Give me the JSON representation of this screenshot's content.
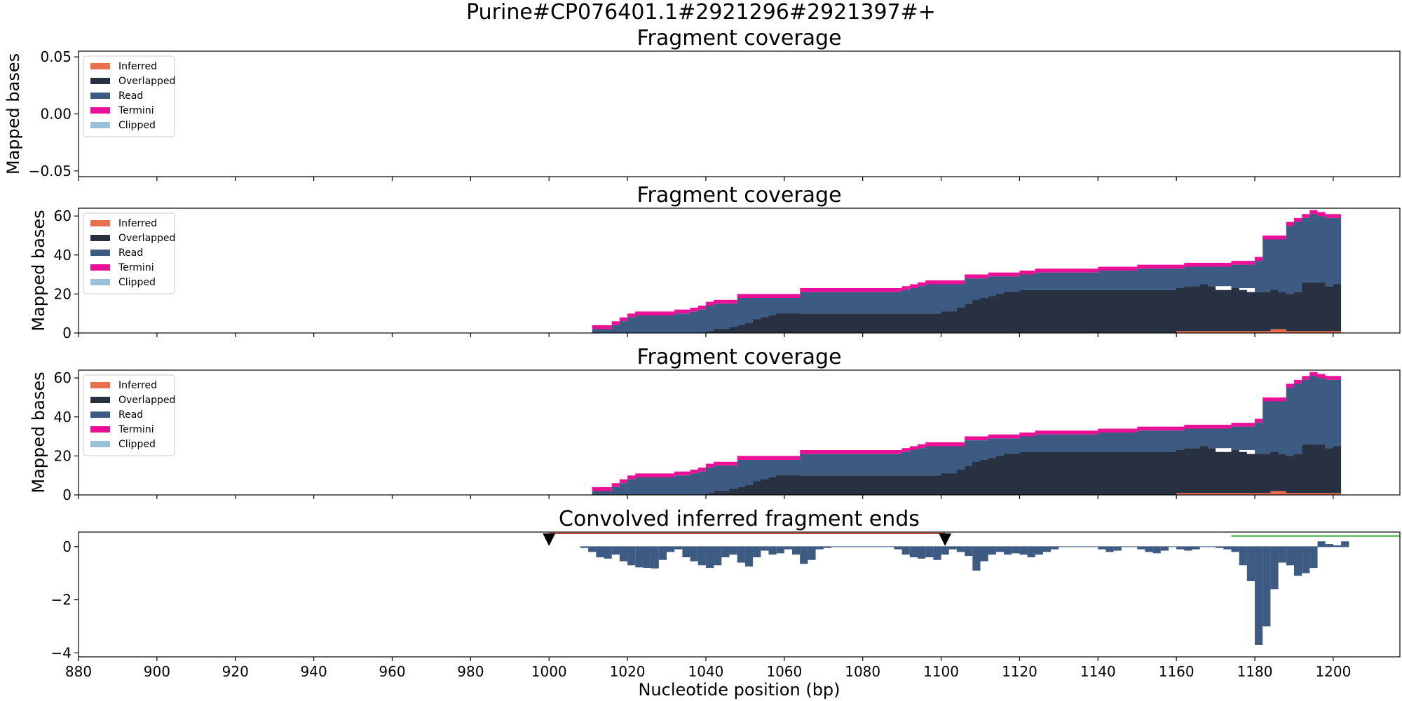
{
  "figure_title": "Purine#CP076401.1#2921296#2921397#+",
  "colors": {
    "Inferred": "#e8704f",
    "Overlapped": "#283142",
    "Read": "#3c5a82",
    "Termini": "#ec1098",
    "Clipped": "#98c1da",
    "conv": "#3c5a82",
    "conv_red_line": "#c0392b",
    "conv_green_line": "#2ca02c"
  },
  "chart_data": [
    {
      "type": "area",
      "title": "Fragment coverage",
      "ylabel": "Mapped bases",
      "xlim": [
        880,
        1217
      ],
      "ylim": [
        -0.055,
        0.055
      ],
      "yticks": [
        "0.05",
        "0.00",
        "−0.05"
      ],
      "ytick_values": [
        0.05,
        0.0,
        -0.05
      ],
      "legend": {
        "placement": "upper-left",
        "entries": [
          "Inferred",
          "Overlapped",
          "Read",
          "Termini",
          "Clipped"
        ]
      },
      "series": []
    },
    {
      "type": "area",
      "title": "Fragment coverage",
      "ylabel": "Mapped bases",
      "xlim": [
        880,
        1217
      ],
      "ylim": [
        0,
        64
      ],
      "yticks": [
        "0",
        "20",
        "40",
        "60"
      ],
      "ytick_values": [
        0,
        20,
        40,
        60
      ],
      "legend": {
        "placement": "upper-left",
        "entries": [
          "Inferred",
          "Overlapped",
          "Read",
          "Termini",
          "Clipped"
        ]
      },
      "coverage": {
        "total": [
          [
            1011,
            2
          ],
          [
            1012,
            2
          ],
          [
            1016,
            4
          ],
          [
            1018,
            6
          ],
          [
            1020,
            8
          ],
          [
            1022,
            9
          ],
          [
            1032,
            10
          ],
          [
            1036,
            11
          ],
          [
            1038,
            12
          ],
          [
            1040,
            14
          ],
          [
            1042,
            15
          ],
          [
            1048,
            18
          ],
          [
            1064,
            21
          ],
          [
            1090,
            22
          ],
          [
            1092,
            23
          ],
          [
            1094,
            24
          ],
          [
            1096,
            25
          ],
          [
            1106,
            28
          ],
          [
            1112,
            29
          ],
          [
            1120,
            30
          ],
          [
            1124,
            31
          ],
          [
            1140,
            32
          ],
          [
            1150,
            33
          ],
          [
            1162,
            34
          ],
          [
            1174,
            35
          ],
          [
            1180,
            37
          ],
          [
            1182,
            48
          ],
          [
            1188,
            55
          ],
          [
            1190,
            57
          ],
          [
            1192,
            59
          ],
          [
            1194,
            61
          ],
          [
            1196,
            60
          ],
          [
            1198,
            59
          ],
          [
            1200,
            59
          ],
          [
            1202,
            null
          ]
        ],
        "overlapped": [
          [
            1040,
            1
          ],
          [
            1042,
            2
          ],
          [
            1046,
            3
          ],
          [
            1048,
            4
          ],
          [
            1050,
            5
          ],
          [
            1052,
            7
          ],
          [
            1054,
            8
          ],
          [
            1056,
            9
          ],
          [
            1058,
            10
          ],
          [
            1100,
            11
          ],
          [
            1104,
            13
          ],
          [
            1106,
            15
          ],
          [
            1108,
            17
          ],
          [
            1110,
            18
          ],
          [
            1112,
            19
          ],
          [
            1114,
            20
          ],
          [
            1116,
            21
          ],
          [
            1120,
            22
          ],
          [
            1160,
            23
          ],
          [
            1162,
            24
          ],
          [
            1166,
            25
          ],
          [
            1168,
            24
          ],
          [
            1170,
            22
          ],
          [
            1174,
            23
          ],
          [
            1176,
            22
          ],
          [
            1178,
            21
          ],
          [
            1184,
            22
          ],
          [
            1186,
            21
          ],
          [
            1188,
            20
          ],
          [
            1190,
            21
          ],
          [
            1192,
            26
          ],
          [
            1198,
            24
          ],
          [
            1200,
            25
          ],
          [
            1202,
            null
          ]
        ],
        "inferred": [
          [
            1160,
            1
          ],
          [
            1184,
            2
          ],
          [
            1188,
            1
          ],
          [
            1202,
            null
          ]
        ],
        "termini_thickness": 2
      }
    },
    {
      "type": "area",
      "title": "Fragment coverage",
      "ylabel": "Mapped bases",
      "xlim": [
        880,
        1217
      ],
      "ylim": [
        0,
        64
      ],
      "yticks": [
        "0",
        "20",
        "40",
        "60"
      ],
      "ytick_values": [
        0,
        20,
        40,
        60
      ],
      "legend": {
        "placement": "upper-left",
        "entries": [
          "Inferred",
          "Overlapped",
          "Read",
          "Termini",
          "Clipped"
        ]
      },
      "coverage": {
        "total": [
          [
            1011,
            2
          ],
          [
            1012,
            2
          ],
          [
            1016,
            4
          ],
          [
            1018,
            6
          ],
          [
            1020,
            8
          ],
          [
            1022,
            9
          ],
          [
            1032,
            10
          ],
          [
            1036,
            11
          ],
          [
            1038,
            12
          ],
          [
            1040,
            14
          ],
          [
            1042,
            15
          ],
          [
            1048,
            18
          ],
          [
            1064,
            21
          ],
          [
            1090,
            22
          ],
          [
            1092,
            23
          ],
          [
            1094,
            24
          ],
          [
            1096,
            25
          ],
          [
            1106,
            28
          ],
          [
            1112,
            29
          ],
          [
            1120,
            30
          ],
          [
            1124,
            31
          ],
          [
            1140,
            32
          ],
          [
            1150,
            33
          ],
          [
            1162,
            34
          ],
          [
            1174,
            35
          ],
          [
            1180,
            37
          ],
          [
            1182,
            48
          ],
          [
            1188,
            55
          ],
          [
            1190,
            57
          ],
          [
            1192,
            59
          ],
          [
            1194,
            61
          ],
          [
            1196,
            60
          ],
          [
            1198,
            59
          ],
          [
            1200,
            59
          ],
          [
            1202,
            null
          ]
        ],
        "overlapped": [
          [
            1040,
            1
          ],
          [
            1042,
            2
          ],
          [
            1046,
            3
          ],
          [
            1048,
            4
          ],
          [
            1050,
            5
          ],
          [
            1052,
            7
          ],
          [
            1054,
            8
          ],
          [
            1056,
            9
          ],
          [
            1058,
            10
          ],
          [
            1100,
            11
          ],
          [
            1104,
            13
          ],
          [
            1106,
            15
          ],
          [
            1108,
            17
          ],
          [
            1110,
            18
          ],
          [
            1112,
            19
          ],
          [
            1114,
            20
          ],
          [
            1116,
            21
          ],
          [
            1120,
            22
          ],
          [
            1160,
            23
          ],
          [
            1162,
            24
          ],
          [
            1166,
            25
          ],
          [
            1168,
            24
          ],
          [
            1170,
            22
          ],
          [
            1174,
            23
          ],
          [
            1176,
            22
          ],
          [
            1178,
            21
          ],
          [
            1184,
            22
          ],
          [
            1186,
            21
          ],
          [
            1188,
            20
          ],
          [
            1190,
            21
          ],
          [
            1192,
            26
          ],
          [
            1198,
            24
          ],
          [
            1200,
            25
          ],
          [
            1202,
            null
          ]
        ],
        "inferred": [
          [
            1160,
            1
          ],
          [
            1184,
            2
          ],
          [
            1188,
            1
          ],
          [
            1202,
            null
          ]
        ],
        "termini_thickness": 2
      }
    },
    {
      "type": "bar",
      "title": "Convolved inferred fragment ends",
      "xlabel": "Nucleotide position (bp)",
      "xlim": [
        880,
        1217
      ],
      "ylim": [
        -4.15,
        0.55
      ],
      "yticks": [
        "0",
        "−2",
        "−4"
      ],
      "ytick_values": [
        0,
        -2,
        -4
      ],
      "xticks": [
        "880",
        "900",
        "920",
        "940",
        "960",
        "980",
        "1000",
        "1020",
        "1040",
        "1060",
        "1080",
        "1100",
        "1120",
        "1140",
        "1160",
        "1180",
        "1200"
      ],
      "xtick_values": [
        880,
        900,
        920,
        940,
        960,
        980,
        1000,
        1020,
        1040,
        1060,
        1080,
        1100,
        1120,
        1140,
        1160,
        1180,
        1200
      ],
      "markers": [
        1000,
        1101
      ],
      "red_line": [
        1000,
        1101
      ],
      "red_line_y": 0.5,
      "green_line": [
        1174,
        1217
      ],
      "green_line_y": 0.4,
      "bars": [
        [
          1008,
          -0.05
        ],
        [
          1010,
          -0.2
        ],
        [
          1012,
          -0.4
        ],
        [
          1014,
          -0.45
        ],
        [
          1016,
          -0.3
        ],
        [
          1018,
          -0.55
        ],
        [
          1020,
          -0.7
        ],
        [
          1022,
          -0.78
        ],
        [
          1024,
          -0.8
        ],
        [
          1026,
          -0.82
        ],
        [
          1028,
          -0.5
        ],
        [
          1030,
          -0.2
        ],
        [
          1032,
          -0.1
        ],
        [
          1034,
          -0.4
        ],
        [
          1036,
          -0.55
        ],
        [
          1038,
          -0.7
        ],
        [
          1040,
          -0.8
        ],
        [
          1042,
          -0.7
        ],
        [
          1044,
          -0.4
        ],
        [
          1046,
          -0.3
        ],
        [
          1048,
          -0.6
        ],
        [
          1050,
          -0.75
        ],
        [
          1052,
          -0.4
        ],
        [
          1054,
          -0.15
        ],
        [
          1056,
          -0.3
        ],
        [
          1058,
          -0.25
        ],
        [
          1060,
          -0.1
        ],
        [
          1062,
          -0.3
        ],
        [
          1064,
          -0.65
        ],
        [
          1066,
          -0.5
        ],
        [
          1068,
          -0.1
        ],
        [
          1070,
          -0.05
        ],
        [
          1088,
          -0.1
        ],
        [
          1090,
          -0.3
        ],
        [
          1092,
          -0.4
        ],
        [
          1094,
          -0.45
        ],
        [
          1096,
          -0.4
        ],
        [
          1098,
          -0.5
        ],
        [
          1100,
          -0.3
        ],
        [
          1102,
          -0.1
        ],
        [
          1104,
          -0.2
        ],
        [
          1106,
          -0.35
        ],
        [
          1108,
          -0.9
        ],
        [
          1110,
          -0.55
        ],
        [
          1112,
          -0.3
        ],
        [
          1114,
          -0.2
        ],
        [
          1116,
          -0.3
        ],
        [
          1118,
          -0.25
        ],
        [
          1120,
          -0.3
        ],
        [
          1122,
          -0.4
        ],
        [
          1124,
          -0.3
        ],
        [
          1126,
          -0.2
        ],
        [
          1128,
          -0.1
        ],
        [
          1140,
          -0.1
        ],
        [
          1142,
          -0.2
        ],
        [
          1144,
          -0.15
        ],
        [
          1150,
          -0.1
        ],
        [
          1152,
          -0.2
        ],
        [
          1154,
          -0.25
        ],
        [
          1156,
          -0.15
        ],
        [
          1160,
          -0.1
        ],
        [
          1162,
          -0.15
        ],
        [
          1164,
          -0.1
        ],
        [
          1170,
          -0.05
        ],
        [
          1172,
          -0.1
        ],
        [
          1174,
          -0.2
        ],
        [
          1176,
          -0.7
        ],
        [
          1178,
          -1.3
        ],
        [
          1180,
          -3.7
        ],
        [
          1182,
          -3.0
        ],
        [
          1184,
          -1.6
        ],
        [
          1186,
          -0.6
        ],
        [
          1188,
          -0.7
        ],
        [
          1190,
          -1.1
        ],
        [
          1192,
          -1.0
        ],
        [
          1194,
          -0.8
        ],
        [
          1196,
          0.2
        ],
        [
          1198,
          0.1
        ],
        [
          1200,
          0.05
        ],
        [
          1202,
          0.2
        ]
      ]
    }
  ]
}
